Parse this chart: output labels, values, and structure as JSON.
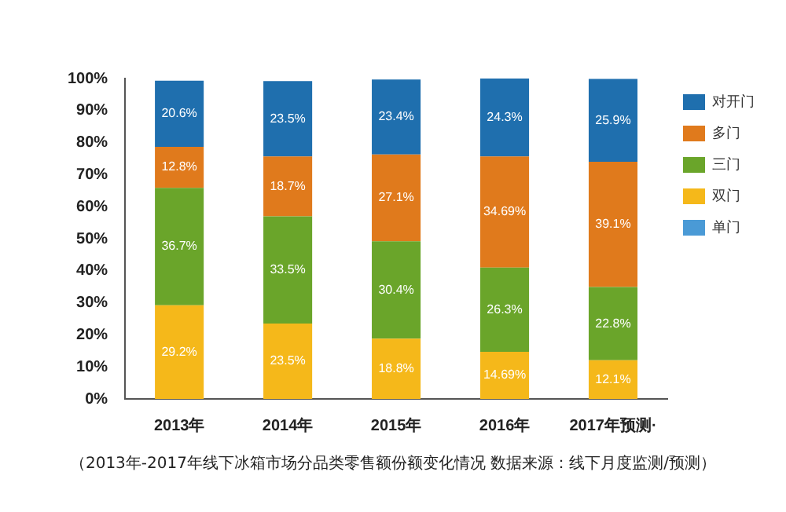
{
  "chart_data": {
    "type": "bar",
    "stacked": true,
    "categories": [
      "2013年",
      "2014年",
      "2015年",
      "2016年",
      "2017年预测·"
    ],
    "series": [
      {
        "name": "单门",
        "color": "#4a9ad6",
        "values": [
          null,
          null,
          null,
          null,
          null
        ]
      },
      {
        "name": "双门",
        "color": "#f5b81a",
        "values": [
          29.2,
          23.5,
          18.8,
          14.69,
          12.1
        ],
        "value_labels": [
          "29.2%",
          "23.5%",
          "18.8%",
          "14.69%",
          "12.1%"
        ]
      },
      {
        "name": "三门",
        "color": "#6aa52a",
        "values": [
          36.7,
          33.5,
          30.4,
          26.3,
          22.8
        ],
        "value_labels": [
          "36.7%",
          "33.5%",
          "30.4%",
          "26.3%",
          "22.8%"
        ]
      },
      {
        "name": "多门",
        "color": "#e07a1c",
        "values": [
          12.8,
          18.7,
          27.1,
          34.69,
          39.1
        ],
        "value_labels": [
          "12.8%",
          "18.7%",
          "27.1%",
          "34.69%",
          "39.1%"
        ]
      },
      {
        "name": "对开门",
        "color": "#1f6fae",
        "values": [
          20.6,
          23.5,
          23.4,
          24.3,
          25.9
        ],
        "value_labels": [
          "20.6%",
          "23.5%",
          "23.4%",
          "24.3%",
          "25.9%"
        ]
      }
    ],
    "ylim": [
      0,
      100
    ],
    "yticks": [
      {
        "value": 0,
        "label": "0%"
      },
      {
        "value": 10,
        "label": "10%"
      },
      {
        "value": 20,
        "label": "20%"
      },
      {
        "value": 30,
        "label": "30%"
      },
      {
        "value": 40,
        "label": "40%"
      },
      {
        "value": 50,
        "label": "50%"
      },
      {
        "value": 60,
        "label": "60%"
      },
      {
        "value": 70,
        "label": "70%"
      },
      {
        "value": 80,
        "label": "80%"
      },
      {
        "value": 90,
        "label": "90%"
      },
      {
        "value": 100,
        "label": "100%"
      }
    ],
    "grid": false,
    "legend": "right",
    "annotations": [
      "（2013年-2017年线下冰箱市场分品类零售额份额变化情况 数据来源：线下月度监测/预测）"
    ]
  }
}
